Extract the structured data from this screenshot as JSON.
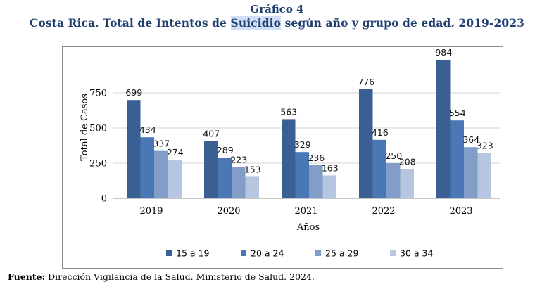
{
  "header": {
    "label": "Gráfico 4",
    "title_before": "Costa Rica. Total de Intentos de ",
    "title_highlight": "Suicidio",
    "title_after": " según año y grupo de edad. 2019-2023"
  },
  "source": {
    "prefix": "Fuente:",
    "text": " Dirección Vigilancia de la Salud. Ministerio de Salud. 2024."
  },
  "colors": {
    "15 a 19": "#3a5f93",
    "20 a 24": "#4a78b5",
    "25 a 29": "#839dc9",
    "30 a 34": "#b6c5e0",
    "title": "#1f3f6e"
  },
  "chart_data": {
    "type": "bar",
    "title": "",
    "xlabel": "Años",
    "ylabel": "Total de Casos",
    "categories": [
      "2019",
      "2020",
      "2021",
      "2022",
      "2023"
    ],
    "series": [
      {
        "name": "15 a 19",
        "values": [
          699,
          407,
          563,
          776,
          984
        ]
      },
      {
        "name": "20 a 24",
        "values": [
          434,
          289,
          329,
          416,
          554
        ]
      },
      {
        "name": "25 a 29",
        "values": [
          337,
          223,
          236,
          250,
          364
        ]
      },
      {
        "name": "30 a 34",
        "values": [
          274,
          153,
          163,
          208,
          323
        ]
      }
    ],
    "yticks": [
      0,
      250,
      500,
      750
    ],
    "ylim": [
      0,
      1000
    ],
    "grid": true,
    "legend_position": "bottom",
    "data_labels": true
  }
}
